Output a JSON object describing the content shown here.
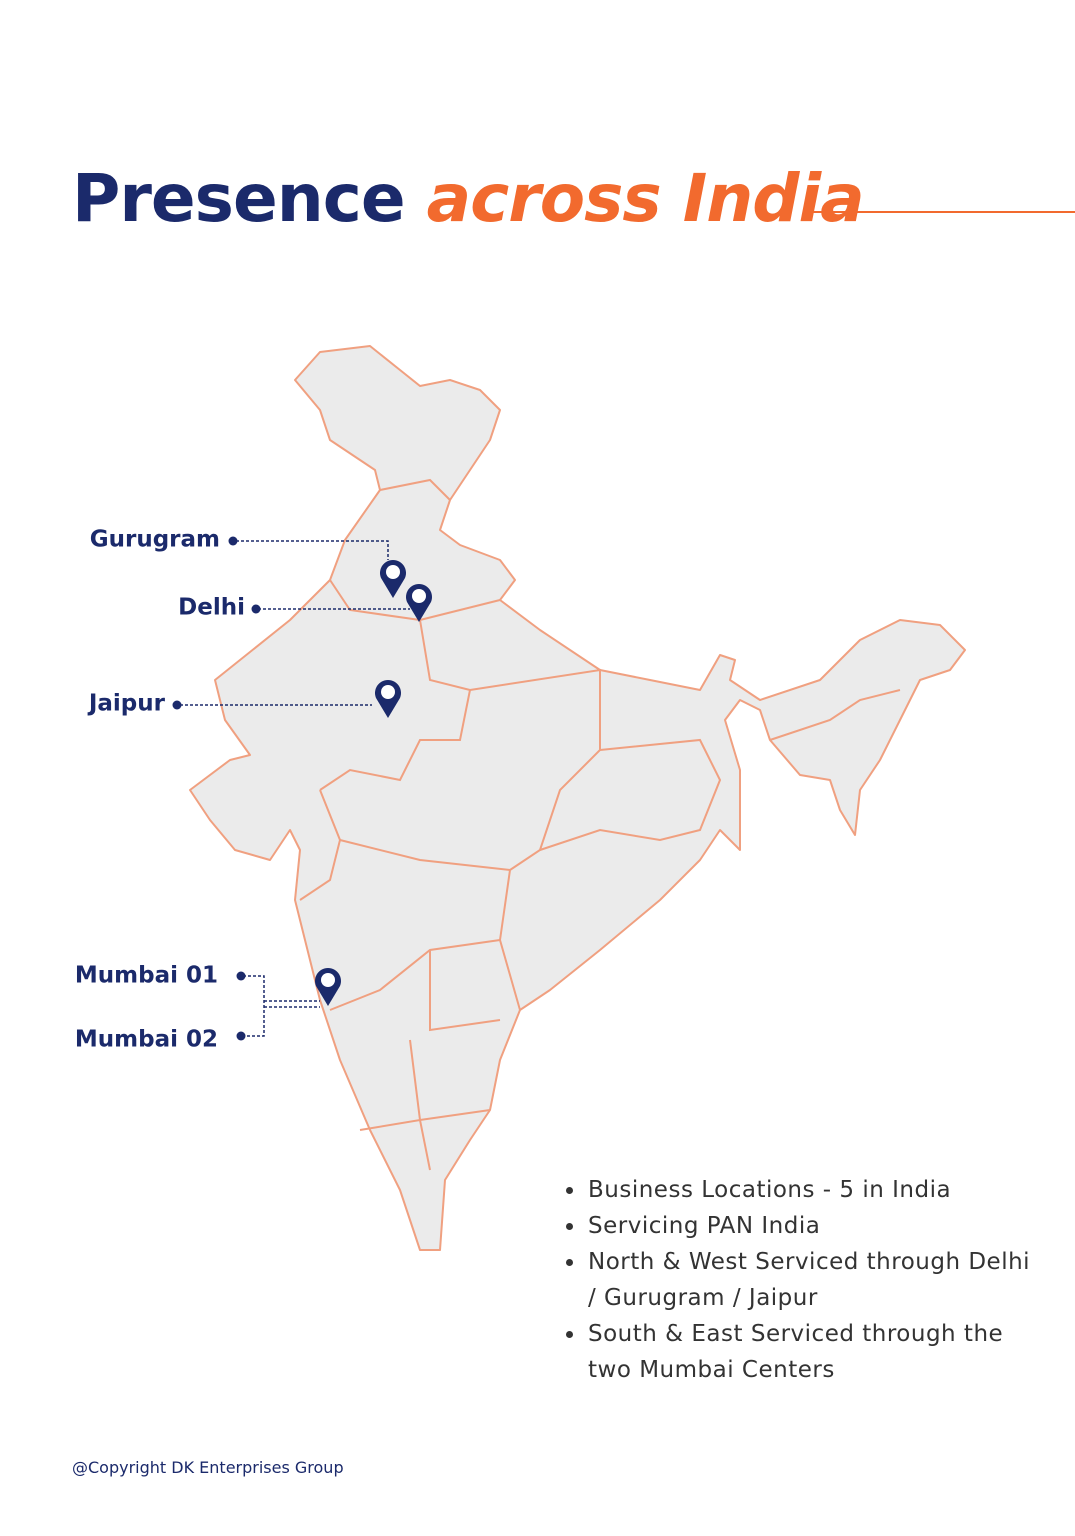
{
  "header": {
    "title": "Presence",
    "title_accent": "across India"
  },
  "locations": [
    "Gurugram",
    "Delhi",
    "Jaipur",
    "Mumbai 01",
    "Mumbai 02"
  ],
  "bullets": [
    "Business Locations - 5 in India",
    "Servicing PAN India",
    "North & West Serviced through Delhi / Gurugram / Jaipur",
    "South & East Serviced through the two Mumbai Centers"
  ],
  "footer": {
    "copyright": "@Copyright DK Enterprises Group"
  }
}
